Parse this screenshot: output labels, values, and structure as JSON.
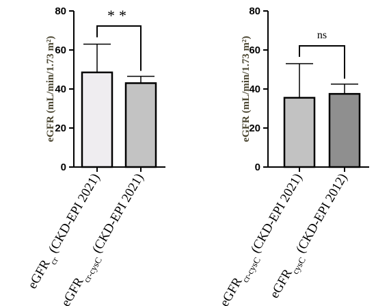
{
  "chart_data": [
    {
      "type": "bar",
      "ylabel": "eGFR (mL/min/1.73 m²)",
      "ylim": [
        0,
        80
      ],
      "yticks": [
        "0",
        "20",
        "40",
        "60",
        "80"
      ],
      "categories": [
        {
          "base": "eGFR",
          "sub": "cr",
          "suffix": " (CKD-EPI 2021)"
        },
        {
          "base": "eGFR",
          "sub": "cr-cysC",
          "suffix": " (CKD-EPI 2021)"
        }
      ],
      "values": [
        48.5,
        43
      ],
      "errors": [
        14.5,
        3.5
      ],
      "colors": [
        "#efedf0",
        "#c3c3c3"
      ],
      "significance": "**"
    },
    {
      "type": "bar",
      "ylabel": "eGFR (mL/min/1.73 m²)",
      "ylim": [
        0,
        80
      ],
      "yticks": [
        "0",
        "20",
        "40",
        "60",
        "80"
      ],
      "categories": [
        {
          "base": "eGFR",
          "sub": "cr-cysC",
          "suffix": " (CKD-EPI 2021)"
        },
        {
          "base": "eGFR",
          "sub": "cysC",
          "suffix": " (CKD-EPI 2012)"
        }
      ],
      "values": [
        35.5,
        37.5
      ],
      "errors": [
        17.5,
        5
      ],
      "colors": [
        "#c2c2c2",
        "#8f8f8f"
      ],
      "significance": "ns"
    }
  ]
}
